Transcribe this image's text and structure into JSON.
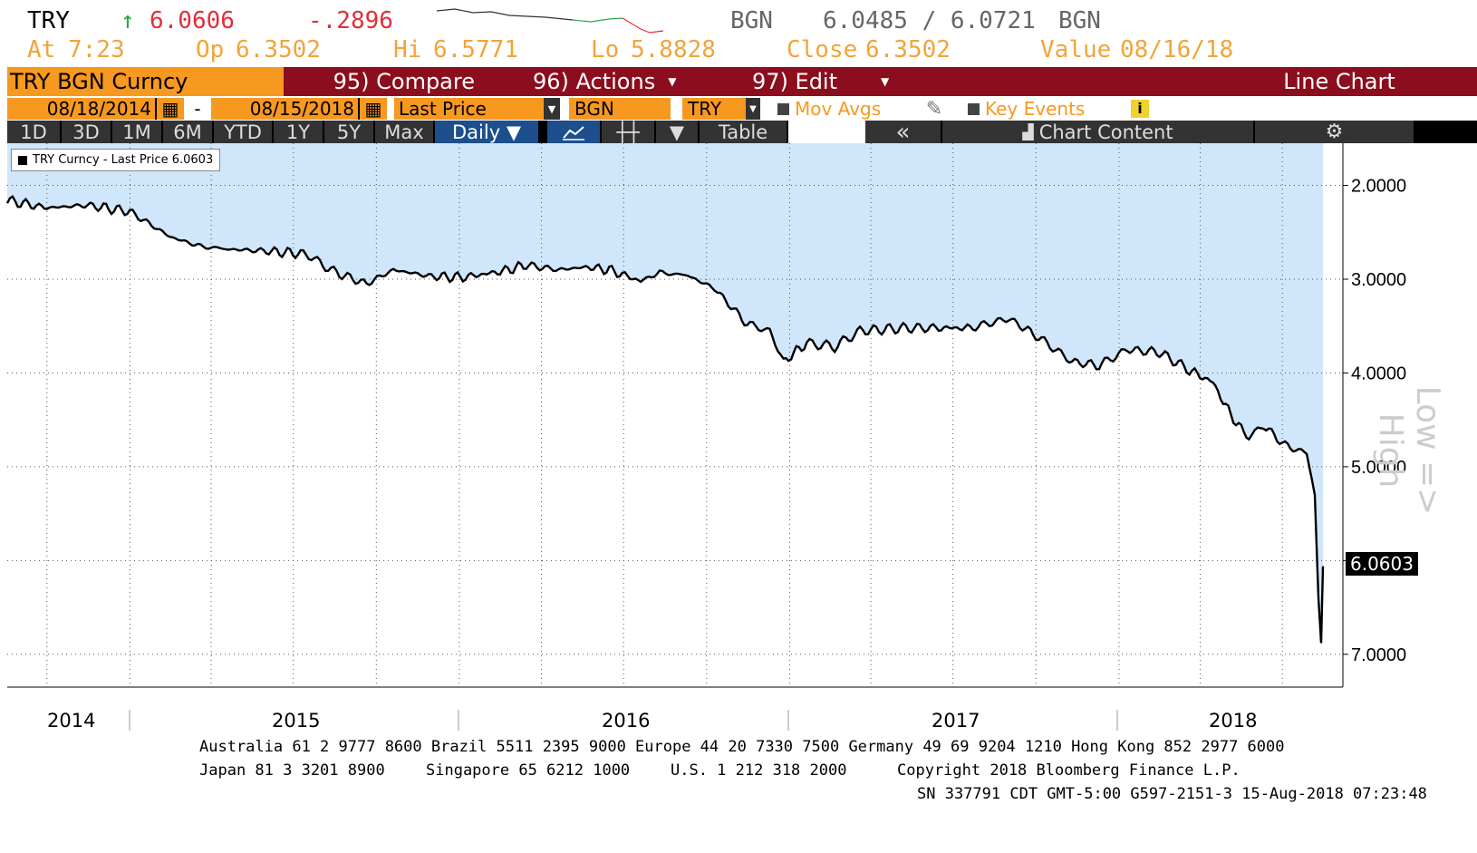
{
  "quote": {
    "ticker": "TRY",
    "arrow": "↑",
    "last": "6.0606",
    "change": "-.2896",
    "src1": "BGN",
    "bid_ask": "6.0485 / 6.0721",
    "src2": "BGN",
    "at_label": "At",
    "at": "7:23",
    "op_label": "Op",
    "op": "6.3502",
    "hi_label": "Hi",
    "hi": "6.5771",
    "lo_label": "Lo",
    "lo": "5.8828",
    "close_label": "Close",
    "close": "6.3502",
    "value_label": "Value",
    "value": "08/16/18"
  },
  "toolbar": {
    "security": "TRY BGN Curncy",
    "compare": "95) Compare",
    "actions": "96) Actions",
    "edit": "97) Edit",
    "chart_type": "Line Chart",
    "start_date": "08/18/2014",
    "dash": "-",
    "end_date": "08/15/2018",
    "field": "Last Price",
    "source": "BGN",
    "currency": "TRY",
    "mov_avgs": "Mov Avgs",
    "key_events": "Key Events",
    "info": "i",
    "periods": [
      "1D",
      "3D",
      "1M",
      "6M",
      "YTD",
      "1Y",
      "5Y",
      "Max"
    ],
    "frequency": "Daily ▼",
    "table": "Table",
    "collapse": "«",
    "chart_content": "Chart Content",
    "gear": "⚙"
  },
  "chart_data": {
    "type": "area",
    "series": [
      {
        "name": "TRY Curncy - Last Price 6.0603",
        "line_color": "#000000",
        "fill_color": "#d0e6fb"
      }
    ],
    "legend": "TRY Curncy - Last Price 6.0603",
    "y_axis_title": "Low => High",
    "y_inverted": true,
    "ylim": [
      1.55,
      7.35
    ],
    "yticks": [
      "2.0000",
      "3.0000",
      "4.0000",
      "5.0000",
      "6.0000",
      "7.0000"
    ],
    "last_value": "6.0603",
    "x_labels": [
      "2014",
      "2015",
      "2016",
      "2017",
      "2018"
    ],
    "x_range": [
      "2014-08-18",
      "2018-08-15"
    ],
    "points": [
      [
        "2014-08-18",
        2.16
      ],
      [
        "2014-10-01",
        2.24
      ],
      [
        "2014-11-15",
        2.21
      ],
      [
        "2015-01-01",
        2.28
      ],
      [
        "2015-02-15",
        2.55
      ],
      [
        "2015-03-20",
        2.65
      ],
      [
        "2015-04-20",
        2.68
      ],
      [
        "2015-06-01",
        2.7
      ],
      [
        "2015-07-15",
        2.73
      ],
      [
        "2015-08-15",
        2.92
      ],
      [
        "2015-09-20",
        3.05
      ],
      [
        "2015-10-20",
        2.9
      ],
      [
        "2015-12-01",
        2.97
      ],
      [
        "2016-01-05",
        2.98
      ],
      [
        "2016-02-15",
        2.92
      ],
      [
        "2016-03-15",
        2.85
      ],
      [
        "2016-04-20",
        2.9
      ],
      [
        "2016-05-20",
        2.87
      ],
      [
        "2016-06-15",
        2.9
      ],
      [
        "2016-07-20",
        3.02
      ],
      [
        "2016-08-10",
        2.93
      ],
      [
        "2016-09-10",
        2.96
      ],
      [
        "2016-10-10",
        3.1
      ],
      [
        "2016-11-15",
        3.48
      ],
      [
        "2016-12-10",
        3.55
      ],
      [
        "2016-12-25",
        3.88
      ],
      [
        "2017-01-20",
        3.68
      ],
      [
        "2017-02-20",
        3.72
      ],
      [
        "2017-03-20",
        3.55
      ],
      [
        "2017-05-10",
        3.52
      ],
      [
        "2017-06-15",
        3.52
      ],
      [
        "2017-07-20",
        3.52
      ],
      [
        "2017-09-01",
        3.42
      ],
      [
        "2017-10-01",
        3.6
      ],
      [
        "2017-11-10",
        3.88
      ],
      [
        "2017-12-10",
        3.92
      ],
      [
        "2018-01-10",
        3.75
      ],
      [
        "2018-02-15",
        3.78
      ],
      [
        "2018-03-20",
        3.97
      ],
      [
        "2018-04-15",
        4.1
      ],
      [
        "2018-05-05",
        4.45
      ],
      [
        "2018-05-25",
        4.7
      ],
      [
        "2018-06-10",
        4.55
      ],
      [
        "2018-06-25",
        4.7
      ],
      [
        "2018-07-10",
        4.8
      ],
      [
        "2018-07-28",
        4.85
      ],
      [
        "2018-08-06",
        5.3
      ],
      [
        "2018-08-10",
        6.4
      ],
      [
        "2018-08-13",
        6.88
      ],
      [
        "2018-08-15",
        6.06
      ]
    ]
  },
  "footer": {
    "line1": "Australia 61 2 9777 8600 Brazil 5511 2395 9000 Europe 44 20 7330 7500 Germany 49 69 9204 1210 Hong Kong 852 2977 6000",
    "japan": "Japan 81 3 3201 8900",
    "singapore": "Singapore 65 6212 1000",
    "us": "U.S. 1 212 318 2000",
    "copyright": "Copyright 2018 Bloomberg Finance L.P.",
    "line3": "SN 337791 CDT  GMT-5:00 G597-2151-3 15-Aug-2018 07:23:48"
  }
}
